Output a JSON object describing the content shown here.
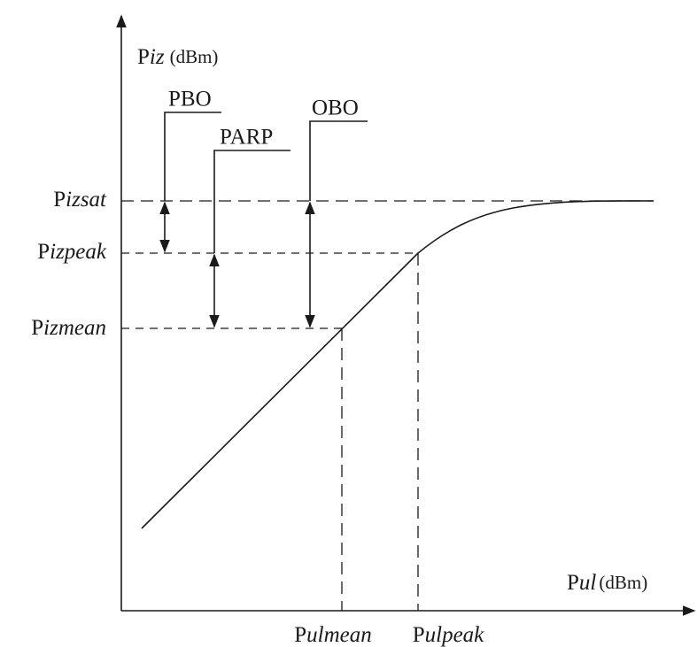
{
  "y_axis_label": {
    "base": "P",
    "italic": "iz",
    "unit": "(dBm)"
  },
  "x_axis_label": {
    "base": "P",
    "italic": "ul",
    "unit": "(dBm)"
  },
  "levels": [
    {
      "base": "P",
      "italic": "izsat"
    },
    {
      "base": "P",
      "italic": "izpeak"
    },
    {
      "base": "P",
      "italic": "izmean"
    }
  ],
  "x_points": [
    {
      "base": "P",
      "italic": "ulmean"
    },
    {
      "base": "P",
      "italic": "ulpeak"
    }
  ],
  "annotations": [
    "PBO",
    "PARP",
    "OBO"
  ]
}
